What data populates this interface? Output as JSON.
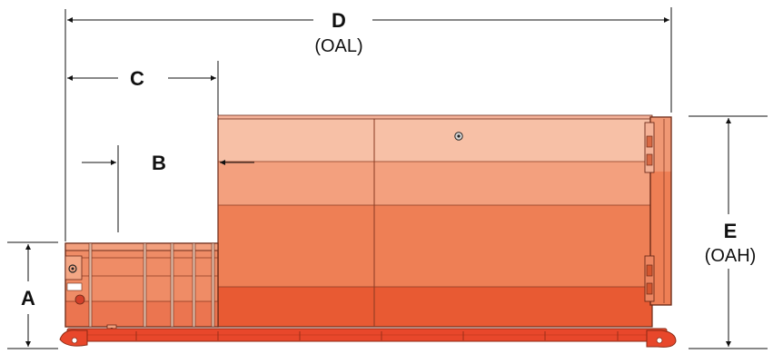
{
  "dimensions": {
    "a": {
      "letter": "A"
    },
    "b": {
      "letter": "B"
    },
    "c": {
      "letter": "C"
    },
    "d": {
      "letter": "D",
      "note": "(OAL)"
    },
    "e": {
      "letter": "E",
      "note": "(OAH)"
    }
  },
  "colors": {
    "body_top": "#f7c0a6",
    "body_band2": "#f3a07e",
    "body_band3": "#ee7f55",
    "body_bottom": "#e85a33",
    "frame": "#e8472b",
    "outline": "#6b2a18",
    "dim_line": "#111111"
  }
}
